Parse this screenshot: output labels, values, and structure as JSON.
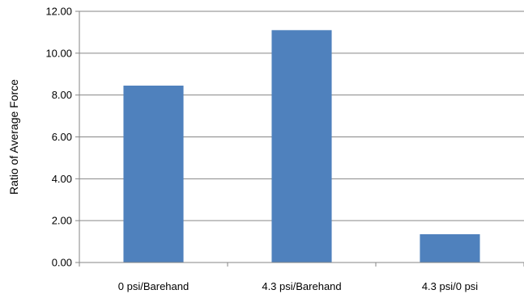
{
  "chart_data": {
    "type": "bar",
    "categories": [
      "0 psi/Barehand",
      "4.3 psi/Barehand",
      "4.3 psi/0 psi"
    ],
    "values": [
      8.45,
      11.1,
      1.35
    ],
    "title": "",
    "xlabel": "",
    "ylabel": "Ratio of Average Force",
    "ylim": [
      0,
      12
    ],
    "ytick_step": 2,
    "yticks": [
      "0.00",
      "2.00",
      "4.00",
      "6.00",
      "8.00",
      "10.00",
      "12.00"
    ],
    "grid": true,
    "legend": "none",
    "bar_color": "#4F81BD",
    "grid_color": "#868686"
  }
}
